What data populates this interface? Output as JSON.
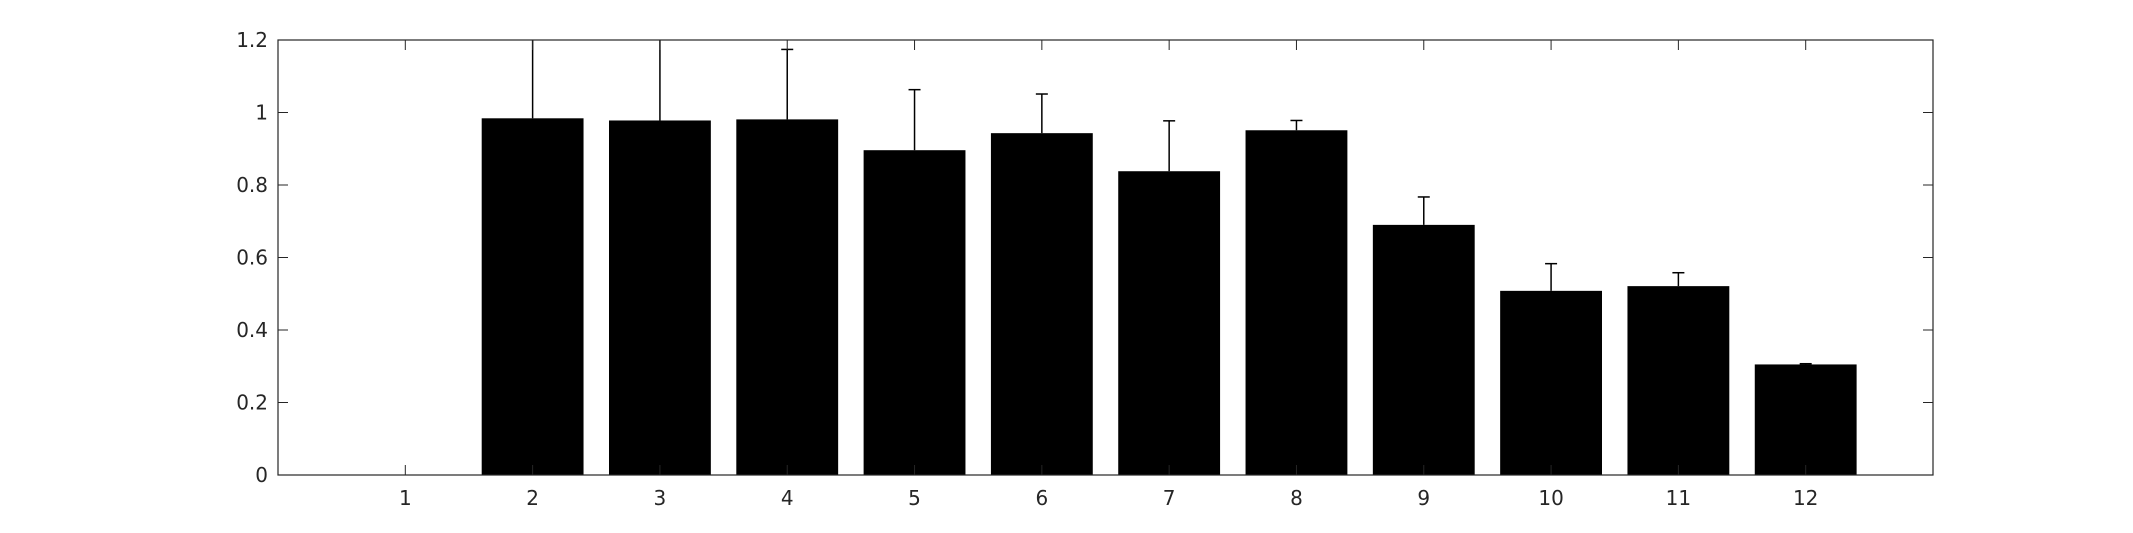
{
  "chart_data": {
    "type": "bar",
    "categories": [
      "1",
      "2",
      "3",
      "4",
      "5",
      "6",
      "7",
      "8",
      "9",
      "10",
      "11",
      "12"
    ],
    "values": [
      0,
      0.984,
      0.978,
      0.981,
      0.896,
      0.943,
      0.838,
      0.951,
      0.69,
      0.508,
      0.521,
      0.305
    ],
    "error_upper": [
      0,
      1.2,
      1.2,
      1.174,
      1.063,
      1.051,
      0.977,
      0.978,
      0.767,
      0.583,
      0.558,
      0.307
    ],
    "ylim": [
      0,
      1.2
    ],
    "yticks": [
      "0",
      "0.2",
      "0.4",
      "0.6",
      "0.8",
      "1",
      "1.2"
    ],
    "ytick_values": [
      0,
      0.2,
      0.4,
      0.6,
      0.8,
      1,
      1.2
    ],
    "xlim": [
      0,
      13
    ],
    "title": "",
    "xlabel": "",
    "ylabel": "",
    "grid": false,
    "colors": {
      "bar": "#000000",
      "axis": "#262626",
      "background": "#ffffff"
    }
  }
}
